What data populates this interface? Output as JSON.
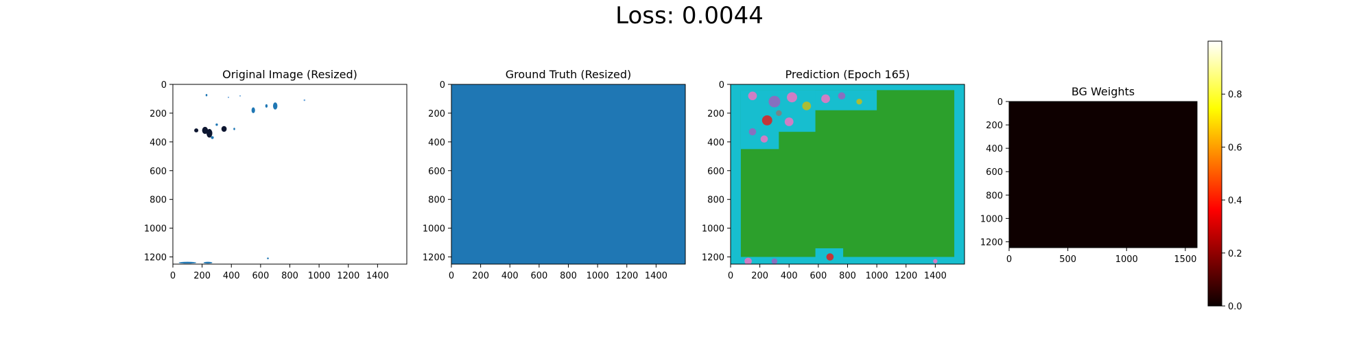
{
  "figure": {
    "suptitle": "Loss: 0.0044"
  },
  "chart_data": [
    {
      "type": "heatmap",
      "title": "Original Image (Resized)",
      "x_range": [
        0,
        1600
      ],
      "y_range": [
        0,
        1250
      ],
      "y_inverted": true,
      "x_ticks": [
        0,
        200,
        400,
        600,
        800,
        1000,
        1200,
        1400
      ],
      "y_ticks": [
        0,
        200,
        400,
        600,
        800,
        1000,
        1200
      ],
      "background_color": "#ffffff",
      "blobs": [
        {
          "x": 160,
          "y": 320,
          "rx": 14,
          "ry": 14,
          "color": "#0d1630"
        },
        {
          "x": 220,
          "y": 320,
          "rx": 20,
          "ry": 25,
          "color": "#0d1630"
        },
        {
          "x": 250,
          "y": 340,
          "rx": 20,
          "ry": 30,
          "color": "#0d1630"
        },
        {
          "x": 350,
          "y": 310,
          "rx": 18,
          "ry": 20,
          "color": "#0d1630"
        },
        {
          "x": 270,
          "y": 370,
          "rx": 10,
          "ry": 10,
          "color": "#1f77b4"
        },
        {
          "x": 300,
          "y": 280,
          "rx": 8,
          "ry": 8,
          "color": "#1f77b4"
        },
        {
          "x": 230,
          "y": 75,
          "rx": 6,
          "ry": 8,
          "color": "#1f77b4"
        },
        {
          "x": 420,
          "y": 310,
          "rx": 6,
          "ry": 8,
          "color": "#1f77b4"
        },
        {
          "x": 550,
          "y": 180,
          "rx": 12,
          "ry": 20,
          "color": "#1f77b4"
        },
        {
          "x": 640,
          "y": 150,
          "rx": 8,
          "ry": 12,
          "color": "#1f77b4"
        },
        {
          "x": 700,
          "y": 150,
          "rx": 15,
          "ry": 25,
          "color": "#1f77b4"
        },
        {
          "x": 900,
          "y": 110,
          "rx": 6,
          "ry": 6,
          "color": "#6fa8dc"
        },
        {
          "x": 380,
          "y": 90,
          "rx": 5,
          "ry": 5,
          "color": "#6fa8dc"
        },
        {
          "x": 460,
          "y": 80,
          "rx": 5,
          "ry": 5,
          "color": "#6fa8dc"
        },
        {
          "x": 650,
          "y": 1210,
          "rx": 6,
          "ry": 6,
          "color": "#1f77b4"
        },
        {
          "x": 100,
          "y": 1240,
          "rx": 60,
          "ry": 6,
          "color": "#1f77b4"
        },
        {
          "x": 240,
          "y": 1240,
          "rx": 30,
          "ry": 6,
          "color": "#1f77b4"
        }
      ]
    },
    {
      "type": "heatmap",
      "title": "Ground Truth (Resized)",
      "x_range": [
        0,
        1600
      ],
      "y_range": [
        0,
        1250
      ],
      "y_inverted": true,
      "x_ticks": [
        0,
        200,
        400,
        600,
        800,
        1000,
        1200,
        1400
      ],
      "y_ticks": [
        0,
        200,
        400,
        600,
        800,
        1000,
        1200
      ],
      "fill_color": "#1f77b4"
    },
    {
      "type": "heatmap",
      "title": "Prediction (Epoch 165)",
      "x_range": [
        0,
        1600
      ],
      "y_range": [
        0,
        1250
      ],
      "y_inverted": true,
      "x_ticks": [
        0,
        200,
        400,
        600,
        800,
        1000,
        1200,
        1400
      ],
      "y_ticks": [
        0,
        200,
        400,
        600,
        800,
        1000,
        1200
      ],
      "regions": [
        {
          "x0": 0,
          "y0": 0,
          "x1": 1600,
          "y1": 1250,
          "color": "#17becf"
        },
        {
          "x0": 70,
          "y0": 40,
          "x1": 1530,
          "y1": 1200,
          "color": "#2ca02c"
        },
        {
          "x0": 70,
          "y0": 40,
          "x1": 1000,
          "y1": 180,
          "color": "#17becf"
        },
        {
          "x0": 70,
          "y0": 40,
          "x1": 580,
          "y1": 330,
          "color": "#17becf"
        },
        {
          "x0": 70,
          "y0": 40,
          "x1": 330,
          "y1": 450,
          "color": "#17becf"
        },
        {
          "x0": 580,
          "y0": 1140,
          "x1": 770,
          "y1": 1250,
          "color": "#17becf"
        }
      ],
      "spots": [
        {
          "x": 150,
          "y": 80,
          "r": 30,
          "color": "#e377c2"
        },
        {
          "x": 300,
          "y": 120,
          "r": 40,
          "color": "#9467bd"
        },
        {
          "x": 420,
          "y": 90,
          "r": 35,
          "color": "#e377c2"
        },
        {
          "x": 520,
          "y": 150,
          "r": 30,
          "color": "#bcbd22"
        },
        {
          "x": 650,
          "y": 100,
          "r": 30,
          "color": "#e377c2"
        },
        {
          "x": 760,
          "y": 80,
          "r": 25,
          "color": "#9467bd"
        },
        {
          "x": 250,
          "y": 250,
          "r": 35,
          "color": "#d62728"
        },
        {
          "x": 400,
          "y": 260,
          "r": 30,
          "color": "#e377c2"
        },
        {
          "x": 150,
          "y": 330,
          "r": 25,
          "color": "#9467bd"
        },
        {
          "x": 230,
          "y": 380,
          "r": 25,
          "color": "#e377c2"
        },
        {
          "x": 880,
          "y": 120,
          "r": 20,
          "color": "#bcbd22"
        },
        {
          "x": 330,
          "y": 200,
          "r": 20,
          "color": "#7f7f7f"
        },
        {
          "x": 120,
          "y": 1230,
          "r": 25,
          "color": "#e377c2"
        },
        {
          "x": 300,
          "y": 1230,
          "r": 20,
          "color": "#9467bd"
        },
        {
          "x": 680,
          "y": 1200,
          "r": 25,
          "color": "#d62728"
        },
        {
          "x": 1400,
          "y": 1230,
          "r": 15,
          "color": "#e377c2"
        }
      ]
    },
    {
      "type": "heatmap",
      "title": "BG Weights",
      "x_range": [
        0,
        1600
      ],
      "y_range": [
        0,
        1250
      ],
      "y_inverted": true,
      "x_ticks": [
        0,
        500,
        1000,
        1500
      ],
      "y_ticks": [
        0,
        200,
        400,
        600,
        800,
        1000,
        1200
      ],
      "fill_color": "#0e0000",
      "colorbar": {
        "colormap": "hot",
        "range": [
          0,
          1
        ],
        "ticks": [
          0.0,
          0.2,
          0.4,
          0.6,
          0.8
        ],
        "tick_labels": [
          "0.0",
          "0.2",
          "0.4",
          "0.6",
          "0.8"
        ]
      }
    }
  ]
}
